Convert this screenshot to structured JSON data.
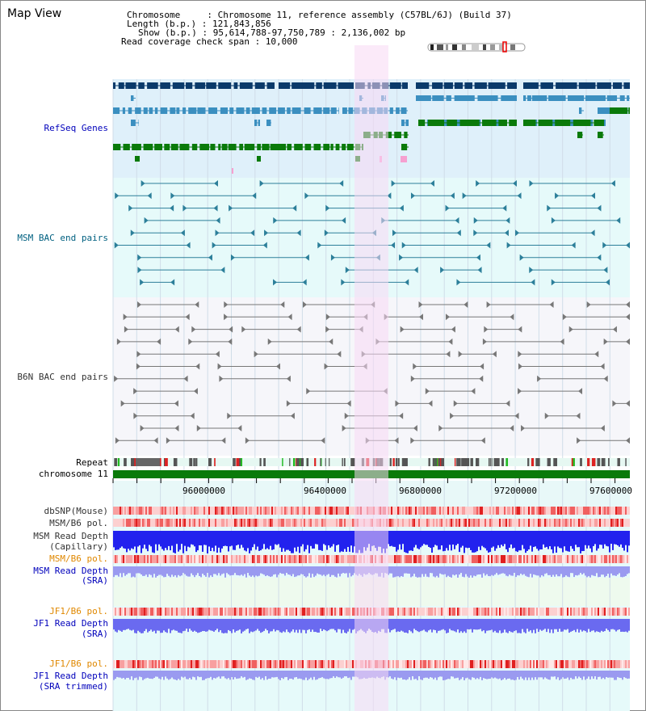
{
  "app": {
    "title": "Map View"
  },
  "info": {
    "line1": "Chromosome     : Chromosome 11, reference assembly (C57BL/6J) (Build 37)",
    "line2": "Length (b.p.) : 121,843,856",
    "line3": "Show (b.p.) : 95,614,788-97,750,789 : 2,136,002 bp",
    "line4": "Read coverage check span : 10,000"
  },
  "tracks": {
    "refseq": "RefSeq Genes",
    "msm_bac": "MSM BAC end pairs",
    "b6n_bac": "B6N BAC end pairs",
    "repeat": "Repeat",
    "chromosome": "chromosome 11",
    "dbsnp": "dbSNP(Mouse)",
    "msm_b6_pol_1": "MSM/B6 pol.",
    "msm_read_depth_cap_1": "MSM Read Depth",
    "msm_read_depth_cap_2": "(Capillary)",
    "msm_b6_pol_2": "MSM/B6 pol.",
    "msm_read_depth_sra_1": "MSM Read Depth",
    "msm_read_depth_sra_2": "(SRA)",
    "jf1_b6_pol_1": "JF1/B6 pol.",
    "jf1_read_depth_sra_1": "JF1 Read Depth",
    "jf1_read_depth_sra_2": "(SRA)",
    "jf1_b6_pol_2": "JF1/B6 pol.",
    "jf1_read_depth_trim_1": "JF1 Read Depth",
    "jf1_read_depth_trim_2": "(SRA trimmed)"
  },
  "axis": {
    "ticks": [
      "96000000",
      "96400000",
      "96800000",
      "97200000",
      "97600000"
    ]
  },
  "colors": {
    "refseq_bg": "#dff0fa",
    "bac_bg": "#e6fafa",
    "b6n_bg": "#f6f6fa",
    "highlight": "#f8d8f4",
    "gene_dark": "#0a3a6a",
    "gene_mid": "#3b8fc0",
    "gene_green": "#0a7a0a",
    "chromosome_bar": "#0a7a0a"
  }
}
